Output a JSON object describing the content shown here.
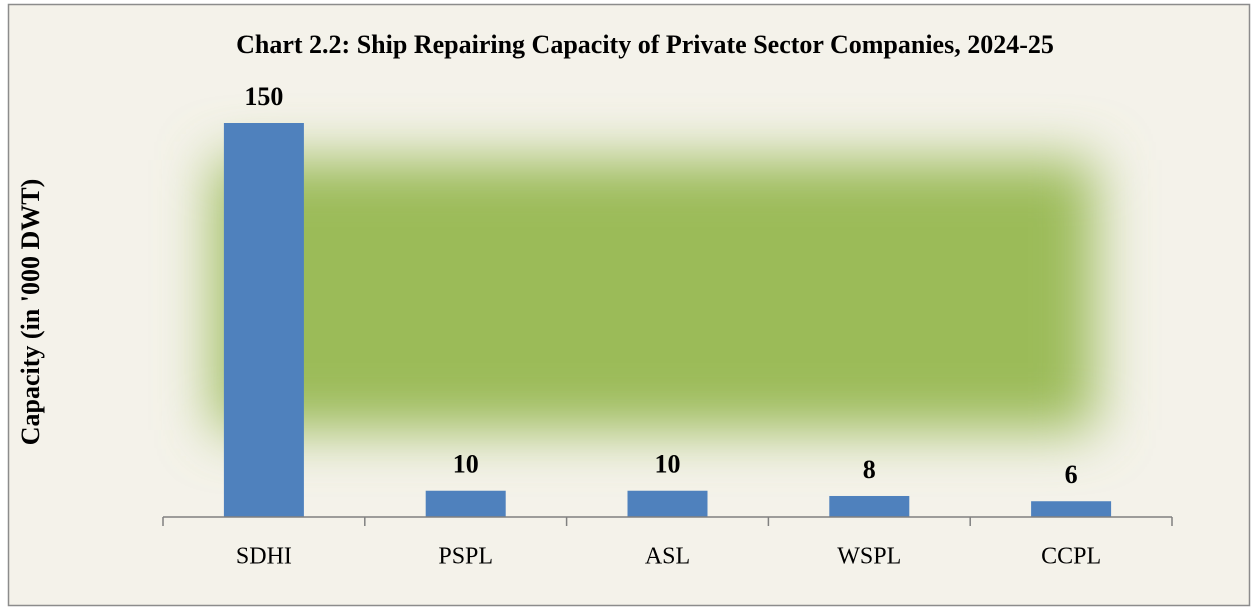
{
  "chart_data": {
    "type": "bar",
    "title": "Chart 2.2: Ship Repairing Capacity of Private Sector Companies, 2024-25",
    "y_label": "Capacity (in '000 DWT)",
    "categories": [
      "SDHI",
      "PSPL",
      "ASL",
      "WSPL",
      "CCPL"
    ],
    "values": [
      150,
      10,
      10,
      8,
      6
    ],
    "color": "#4f81bd",
    "ylim": [
      0,
      150
    ]
  }
}
